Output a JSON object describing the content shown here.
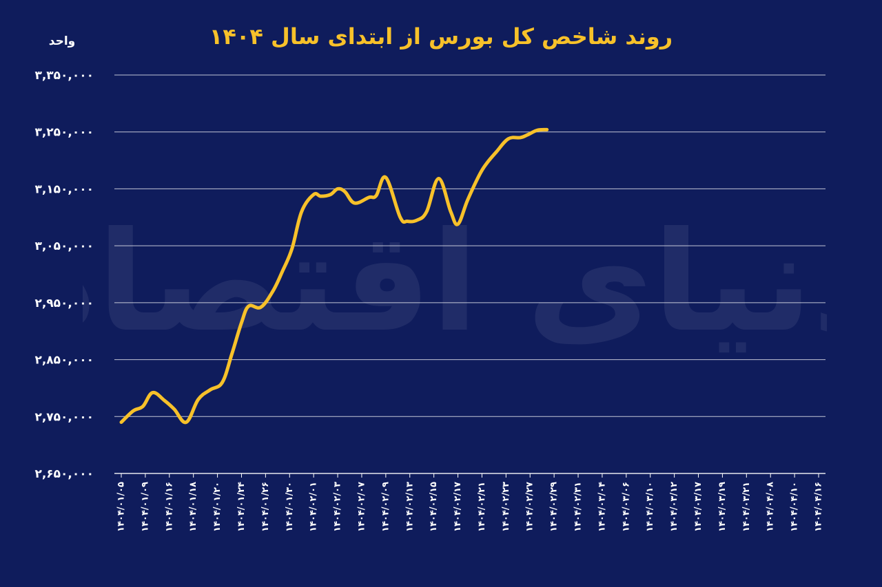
{
  "watermark": "دنیای اقتصاد",
  "colors": {
    "background": "#0f1c5c",
    "line": "#f7c12a",
    "grid": "#ffffff",
    "title": "#f7c12a"
  },
  "chart_data": {
    "type": "line",
    "title": "روند شاخص کل بورس از ابتدای سال ۱۴۰۴",
    "ylabel": "واحد",
    "xlabel": "",
    "ylim": [
      2650000,
      3350000
    ],
    "yticks": [
      2650000,
      2750000,
      2850000,
      2950000,
      3050000,
      3150000,
      3250000,
      3350000
    ],
    "ytick_labels": [
      "۲,۶۵۰,۰۰۰",
      "۲,۷۵۰,۰۰۰",
      "۲,۸۵۰,۰۰۰",
      "۲,۹۵۰,۰۰۰",
      "۳,۰۵۰,۰۰۰",
      "۳,۱۵۰,۰۰۰",
      "۳,۲۵۰,۰۰۰",
      "۳,۳۵۰,۰۰۰"
    ],
    "grid": true,
    "categories": [
      "۱۴۰۴/۰۱/۰۵",
      "۱۴۰۴/۰۱/۰۹",
      "۱۴۰۴/۰۱/۱۶",
      "۱۴۰۴/۰۱/۱۸",
      "۱۴۰۴/۰۱/۲۰",
      "۱۴۰۴/۰۱/۲۴",
      "۱۴۰۴/۰۱/۲۶",
      "۱۴۰۴/۰۱/۳۰",
      "۱۴۰۴/۰۲/۰۱",
      "۱۴۰۴/۰۲/۰۳",
      "۱۴۰۴/۰۲/۰۷",
      "۱۴۰۴/۰۲/۰۹",
      "۱۴۰۴/۰۲/۱۳",
      "۱۴۰۴/۰۲/۱۵",
      "۱۴۰۴/۰۲/۱۷",
      "۱۴۰۴/۰۲/۲۱",
      "۱۴۰۴/۰۲/۲۳",
      "۱۴۰۴/۰۲/۲۷",
      "۱۴۰۴/۰۲/۲۹",
      "۱۴۰۴/۰۲/۳۱",
      "۱۴۰۴/۰۳/۰۴",
      "۱۴۰۴/۰۳/۰۶",
      "۱۴۰۴/۰۳/۱۰",
      "۱۴۰۴/۰۳/۱۲",
      "۱۴۰۴/۰۳/۱۷",
      "۱۴۰۴/۰۳/۱۹",
      "۱۴۰۴/۰۳/۲۱",
      "۱۴۰۴/۰۴/۰۸",
      "۱۴۰۴/۰۴/۱۰",
      "۱۴۰۴/۰۴/۱۶"
    ],
    "series": [
      {
        "x": [
          0,
          0.5,
          0.9,
          1.3,
          1.8,
          2.2,
          2.7,
          3.2,
          3.7,
          4.2,
          4.6,
          5.0,
          5.3,
          5.8,
          6.3,
          6.7,
          7.1,
          7.5,
          8.0,
          8.3,
          8.7,
          9.0,
          9.3,
          9.7,
          10.3,
          10.6,
          11.0,
          11.6,
          11.9,
          12.3,
          12.7,
          13.2,
          13.7,
          14.0,
          14.4,
          14.9,
          15.2,
          15.6,
          16.1,
          16.6,
          16.9,
          17.3,
          17.7
        ],
        "values": [
          2740000,
          2760000,
          2768000,
          2792000,
          2778000,
          2763000,
          2740000,
          2780000,
          2797000,
          2810000,
          2860000,
          2915000,
          2944000,
          2942000,
          2970000,
          3005000,
          3045000,
          3110000,
          3140000,
          3137000,
          3140000,
          3150000,
          3145000,
          3125000,
          3135000,
          3138000,
          3170000,
          3100000,
          3093000,
          3095000,
          3110000,
          3168000,
          3110000,
          3088000,
          3130000,
          3175000,
          3195000,
          3215000,
          3238000,
          3240000,
          3245000,
          3253000,
          3254000
        ]
      }
    ]
  }
}
